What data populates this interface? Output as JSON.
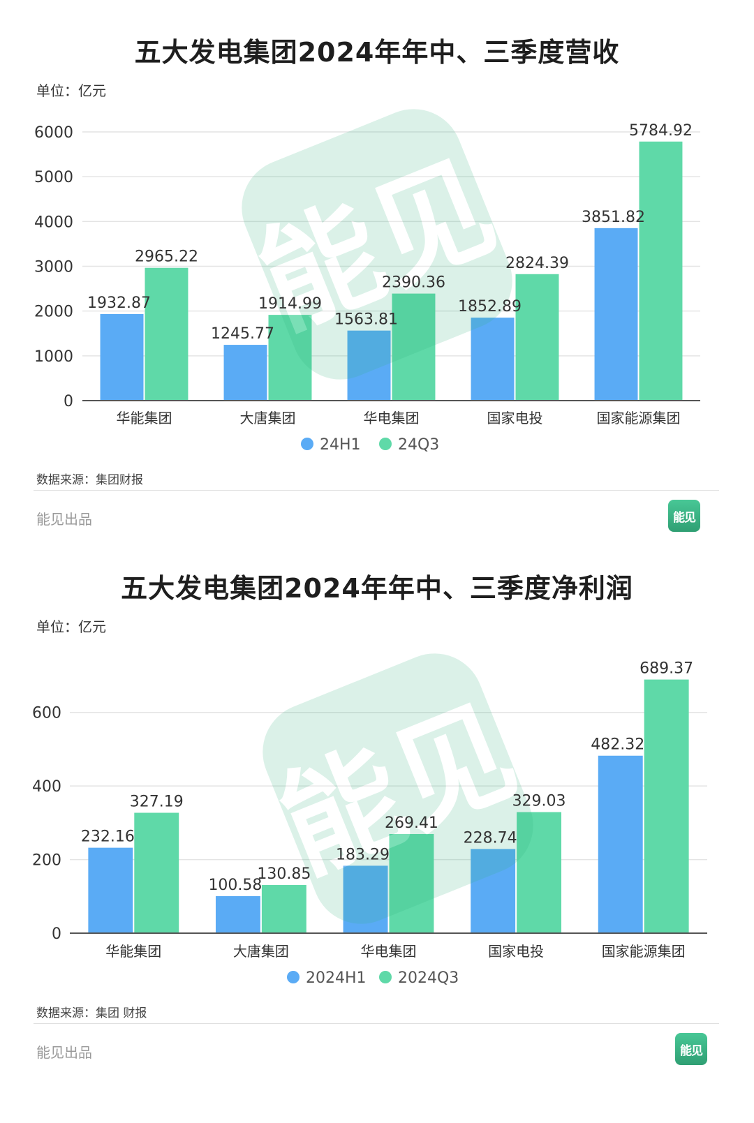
{
  "colors": {
    "series_a": "#5aabf5",
    "series_b": "#5fd9a8",
    "watermark": "#2fb37e",
    "grid": "#e4e4e4",
    "axis": "#555555"
  },
  "watermark": {
    "text": "能见"
  },
  "chart_data": [
    {
      "type": "bar",
      "title": "五大发电集团2024年年中、三季度营收",
      "unit": "单位：亿元",
      "categories": [
        "华能集团",
        "大唐集团",
        "华电集团",
        "国家电投",
        "国家能源集团"
      ],
      "series": [
        {
          "name": "24H1",
          "values": [
            1932.87,
            1245.77,
            1563.81,
            1852.89,
            3851.82
          ]
        },
        {
          "name": "24Q3",
          "values": [
            2965.22,
            1914.99,
            2390.36,
            2824.39,
            5784.92
          ]
        }
      ],
      "ylim": [
        0,
        6000
      ],
      "yticks": [
        0,
        1000,
        2000,
        3000,
        4000,
        5000,
        6000
      ],
      "grid": true,
      "legend": "bottom-center",
      "source": "数据来源：集团财报",
      "brand": "能见出品",
      "logo": "能见"
    },
    {
      "type": "bar",
      "title": "五大发电集团2024年年中、三季度净利润",
      "unit": "单位：亿元",
      "categories": [
        "华能集团",
        "大唐集团",
        "华电集团",
        "国家电投",
        "国家能源集团"
      ],
      "series": [
        {
          "name": "2024H1",
          "values": [
            232.16,
            100.58,
            183.29,
            228.74,
            482.32
          ]
        },
        {
          "name": "2024Q3",
          "values": [
            327.19,
            130.85,
            269.41,
            329.03,
            689.37
          ]
        }
      ],
      "ylim": [
        0,
        700
      ],
      "yticks": [
        0,
        200,
        400,
        600
      ],
      "grid": true,
      "legend": "bottom-center",
      "source": "数据来源：集团 财报",
      "brand": "能见出品",
      "logo": "能见"
    }
  ]
}
